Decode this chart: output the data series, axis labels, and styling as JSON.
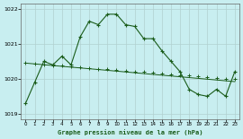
{
  "title": "Graphe pression niveau de la mer (hPa)",
  "background_color": "#c8eef0",
  "grid_color": "#b0d0d0",
  "line_color": "#1a5c1a",
  "xlim": [
    -0.5,
    23.5
  ],
  "ylim": [
    1018.85,
    1022.15
  ],
  "yticks": [
    1019,
    1020,
    1021,
    1022
  ],
  "xticks": [
    0,
    1,
    2,
    3,
    4,
    5,
    6,
    7,
    8,
    9,
    10,
    11,
    12,
    13,
    14,
    15,
    16,
    17,
    18,
    19,
    20,
    21,
    22,
    23
  ],
  "series1_x": [
    0,
    1,
    2,
    3,
    4,
    5,
    6,
    7,
    8,
    9,
    10,
    11,
    12,
    13,
    14,
    15,
    16,
    17,
    18,
    19,
    20,
    21,
    22,
    23
  ],
  "series1_y": [
    1019.3,
    1019.9,
    1020.5,
    1020.4,
    1020.65,
    1020.4,
    1021.2,
    1021.65,
    1021.55,
    1021.85,
    1021.85,
    1021.55,
    1021.5,
    1021.15,
    1021.15,
    1020.8,
    1020.5,
    1020.2,
    1019.7,
    1019.55,
    1019.5,
    1019.7,
    1019.5,
    1020.2
  ],
  "series2_x": [
    0,
    23
  ],
  "series2_y": [
    1020.45,
    1019.92
  ],
  "series3_x": [
    0,
    1,
    2,
    3,
    4,
    5,
    6,
    7,
    8,
    9,
    10,
    11,
    12,
    13,
    14,
    15,
    16,
    17,
    18,
    19,
    20,
    21,
    22,
    23
  ],
  "series3_y": [
    1020.45,
    1020.43,
    1020.41,
    1020.39,
    1020.37,
    1020.35,
    1020.33,
    1020.31,
    1020.29,
    1020.27,
    1020.25,
    1020.23,
    1020.21,
    1020.19,
    1020.17,
    1020.15,
    1020.13,
    1020.11,
    1020.09,
    1020.07,
    1020.05,
    1020.03,
    1020.01,
    1019.99
  ]
}
